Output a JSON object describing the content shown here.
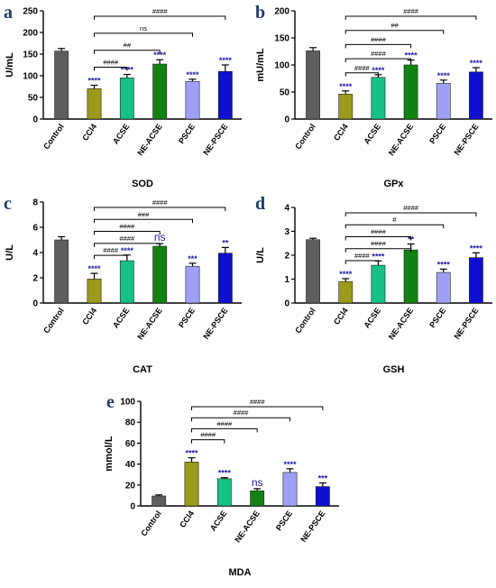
{
  "chart_data": [
    {
      "panel": "a",
      "type": "bar",
      "categories": [
        "Control",
        "CCl4",
        "ACSE",
        "NE-ACSE",
        "PSCE",
        "NE-PSCE"
      ],
      "values": [
        157,
        70,
        95,
        127,
        87,
        110
      ],
      "errors": [
        6,
        8,
        8,
        10,
        5,
        15
      ],
      "colors": [
        "#5e5e5e",
        "#9c9a1a",
        "#17c083",
        "#128312",
        "#9fa0f5",
        "#0f0fd0"
      ],
      "significance": [
        "",
        "****",
        "****",
        "****",
        "****",
        "****"
      ],
      "ylabel": "U/mL",
      "xlabel": "SOD",
      "ylim": [
        0,
        250
      ],
      "yticks": [
        0,
        50,
        100,
        150,
        200,
        250
      ],
      "comparisons": [
        {
          "from": 1,
          "to": 2,
          "label": "####"
        },
        {
          "from": 1,
          "to": 3,
          "label": "##"
        },
        {
          "from": 1,
          "to": 4,
          "label": "ns"
        },
        {
          "from": 1,
          "to": 5,
          "label": "####"
        }
      ]
    },
    {
      "panel": "b",
      "type": "bar",
      "categories": [
        "Control",
        "CCl4",
        "ACSE",
        "NE-ACSE",
        "PSCE",
        "NE-PSCE"
      ],
      "values": [
        126,
        46,
        77,
        100,
        66,
        87
      ],
      "errors": [
        6,
        6,
        5,
        9,
        6,
        8
      ],
      "colors": [
        "#5e5e5e",
        "#9c9a1a",
        "#17c083",
        "#128312",
        "#9fa0f5",
        "#0f0fd0"
      ],
      "significance": [
        "",
        "****",
        "****",
        "****",
        "****",
        "****"
      ],
      "ylabel": "mU/mL",
      "xlabel": "GPx",
      "ylim": [
        0,
        200
      ],
      "yticks": [
        0,
        50,
        100,
        150,
        200
      ],
      "comparisons": [
        {
          "from": 1,
          "to": 2,
          "label": "####"
        },
        {
          "from": 1,
          "to": 3,
          "label": "####"
        },
        {
          "from": 1,
          "to": 3,
          "label": "####"
        },
        {
          "from": 1,
          "to": 4,
          "label": "##"
        },
        {
          "from": 1,
          "to": 5,
          "label": "####"
        }
      ]
    },
    {
      "panel": "c",
      "type": "bar",
      "categories": [
        "Control",
        "CCl4",
        "ACSE",
        "NE-ACSE",
        "PSCE",
        "NE-PSCE"
      ],
      "values": [
        5.0,
        1.9,
        3.35,
        4.5,
        2.9,
        3.95
      ],
      "errors": [
        0.25,
        0.45,
        0.45,
        0.2,
        0.25,
        0.45
      ],
      "colors": [
        "#5e5e5e",
        "#9c9a1a",
        "#17c083",
        "#128312",
        "#9fa0f5",
        "#0f0fd0"
      ],
      "significance": [
        "",
        "****",
        "****",
        "ns",
        "***",
        "**"
      ],
      "ylabel": "U/L",
      "xlabel": "CAT",
      "ylim": [
        0,
        8
      ],
      "yticks": [
        0,
        2,
        4,
        6,
        8
      ],
      "comparisons": [
        {
          "from": 1,
          "to": 2,
          "label": "####"
        },
        {
          "from": 1,
          "to": 3,
          "label": "####"
        },
        {
          "from": 1,
          "to": 3,
          "label": "####"
        },
        {
          "from": 1,
          "to": 4,
          "label": "###"
        },
        {
          "from": 1,
          "to": 5,
          "label": "####"
        }
      ]
    },
    {
      "panel": "d",
      "type": "bar",
      "categories": [
        "Control",
        "CCl4",
        "ACSE",
        "NE-ACSE",
        "PSCE",
        "NE-PSCE"
      ],
      "values": [
        2.65,
        0.9,
        1.58,
        2.22,
        1.28,
        1.9
      ],
      "errors": [
        0.06,
        0.12,
        0.18,
        0.25,
        0.14,
        0.2
      ],
      "colors": [
        "#5e5e5e",
        "#9c9a1a",
        "#17c083",
        "#128312",
        "#9fa0f5",
        "#0f0fd0"
      ],
      "significance": [
        "",
        "****",
        "****",
        "**",
        "****",
        "****"
      ],
      "ylabel": "U/L",
      "xlabel": "GSH",
      "ylim": [
        0,
        4
      ],
      "yticks": [
        0,
        1,
        2,
        3,
        4
      ],
      "comparisons": [
        {
          "from": 1,
          "to": 2,
          "label": "####"
        },
        {
          "from": 1,
          "to": 3,
          "label": "####"
        },
        {
          "from": 1,
          "to": 3,
          "label": "####"
        },
        {
          "from": 1,
          "to": 4,
          "label": "#"
        },
        {
          "from": 1,
          "to": 5,
          "label": "####"
        }
      ]
    },
    {
      "panel": "e",
      "type": "bar",
      "categories": [
        "Control",
        "CCl4",
        "ACSE",
        "NE-ACSE",
        "PSCE",
        "NE-PSCE"
      ],
      "values": [
        9.5,
        42,
        26,
        14.5,
        32,
        18.5
      ],
      "errors": [
        1,
        4,
        1,
        2,
        3.5,
        3.5
      ],
      "colors": [
        "#5e5e5e",
        "#9c9a1a",
        "#17c083",
        "#128312",
        "#9fa0f5",
        "#0f0fd0"
      ],
      "significance": [
        "",
        "****",
        "****",
        "ns",
        "****",
        "***"
      ],
      "ylabel": "mmol/L",
      "xlabel": "MDA",
      "ylim": [
        0,
        100
      ],
      "yticks": [
        0,
        20,
        40,
        60,
        80,
        100
      ],
      "comparisons": [
        {
          "from": 1,
          "to": 2,
          "label": "####"
        },
        {
          "from": 1,
          "to": 3,
          "label": "####"
        },
        {
          "from": 1,
          "to": 4,
          "label": "####"
        },
        {
          "from": 1,
          "to": 5,
          "label": "####"
        }
      ]
    }
  ]
}
